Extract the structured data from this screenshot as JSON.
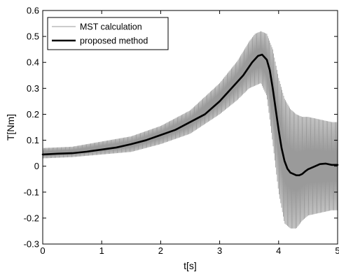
{
  "chart_data": {
    "type": "line",
    "xlabel": "t[s]",
    "ylabel": "T[Nm]",
    "xlim": [
      0,
      5
    ],
    "ylim": [
      -0.3,
      0.6
    ],
    "xticks": [
      "0",
      "1",
      "2",
      "3",
      "4",
      "5"
    ],
    "yticks": [
      "-0.3",
      "-0.2",
      "-0.1",
      "0",
      "0.1",
      "0.2",
      "0.3",
      "0.4",
      "0.5",
      "0.6"
    ],
    "grid": false,
    "legend_position": "top-left",
    "series": [
      {
        "name": "MST calculation",
        "color": "#9a9a9a",
        "style": "oscillating",
        "mean_x": [
          0,
          0.5,
          1.0,
          1.5,
          2.0,
          2.5,
          3.0,
          3.3,
          3.5,
          3.6,
          3.7,
          3.8,
          3.9,
          4.0,
          4.1,
          4.2,
          4.3,
          4.4,
          4.5,
          4.7,
          4.9,
          5.0
        ],
        "mean_y": [
          0.05,
          0.055,
          0.07,
          0.085,
          0.12,
          0.17,
          0.26,
          0.33,
          0.39,
          0.41,
          0.42,
          0.39,
          0.27,
          0.12,
          0.02,
          -0.01,
          -0.02,
          -0.01,
          0.0,
          0.0,
          0.0,
          0.0
        ],
        "amplitude_y": [
          0.02,
          0.02,
          0.025,
          0.03,
          0.035,
          0.045,
          0.06,
          0.075,
          0.09,
          0.1,
          0.1,
          0.12,
          0.18,
          0.22,
          0.24,
          0.23,
          0.22,
          0.2,
          0.19,
          0.18,
          0.17,
          0.17
        ]
      },
      {
        "name": "proposed method",
        "color": "#000000",
        "style": "solid",
        "x": [
          0,
          0.25,
          0.5,
          0.75,
          1.0,
          1.25,
          1.5,
          1.75,
          2.0,
          2.25,
          2.5,
          2.75,
          3.0,
          3.2,
          3.4,
          3.55,
          3.65,
          3.72,
          3.8,
          3.85,
          3.9,
          3.95,
          4.0,
          4.05,
          4.1,
          4.15,
          4.2,
          4.25,
          4.3,
          4.35,
          4.4,
          4.45,
          4.5,
          4.6,
          4.7,
          4.8,
          4.9,
          5.0
        ],
        "y": [
          0.045,
          0.048,
          0.05,
          0.056,
          0.064,
          0.072,
          0.085,
          0.1,
          0.12,
          0.14,
          0.17,
          0.2,
          0.25,
          0.3,
          0.35,
          0.4,
          0.425,
          0.43,
          0.41,
          0.37,
          0.3,
          0.22,
          0.14,
          0.07,
          0.02,
          -0.01,
          -0.025,
          -0.03,
          -0.035,
          -0.035,
          -0.03,
          -0.02,
          -0.012,
          -0.002,
          0.008,
          0.01,
          0.005,
          0.005
        ]
      }
    ]
  }
}
